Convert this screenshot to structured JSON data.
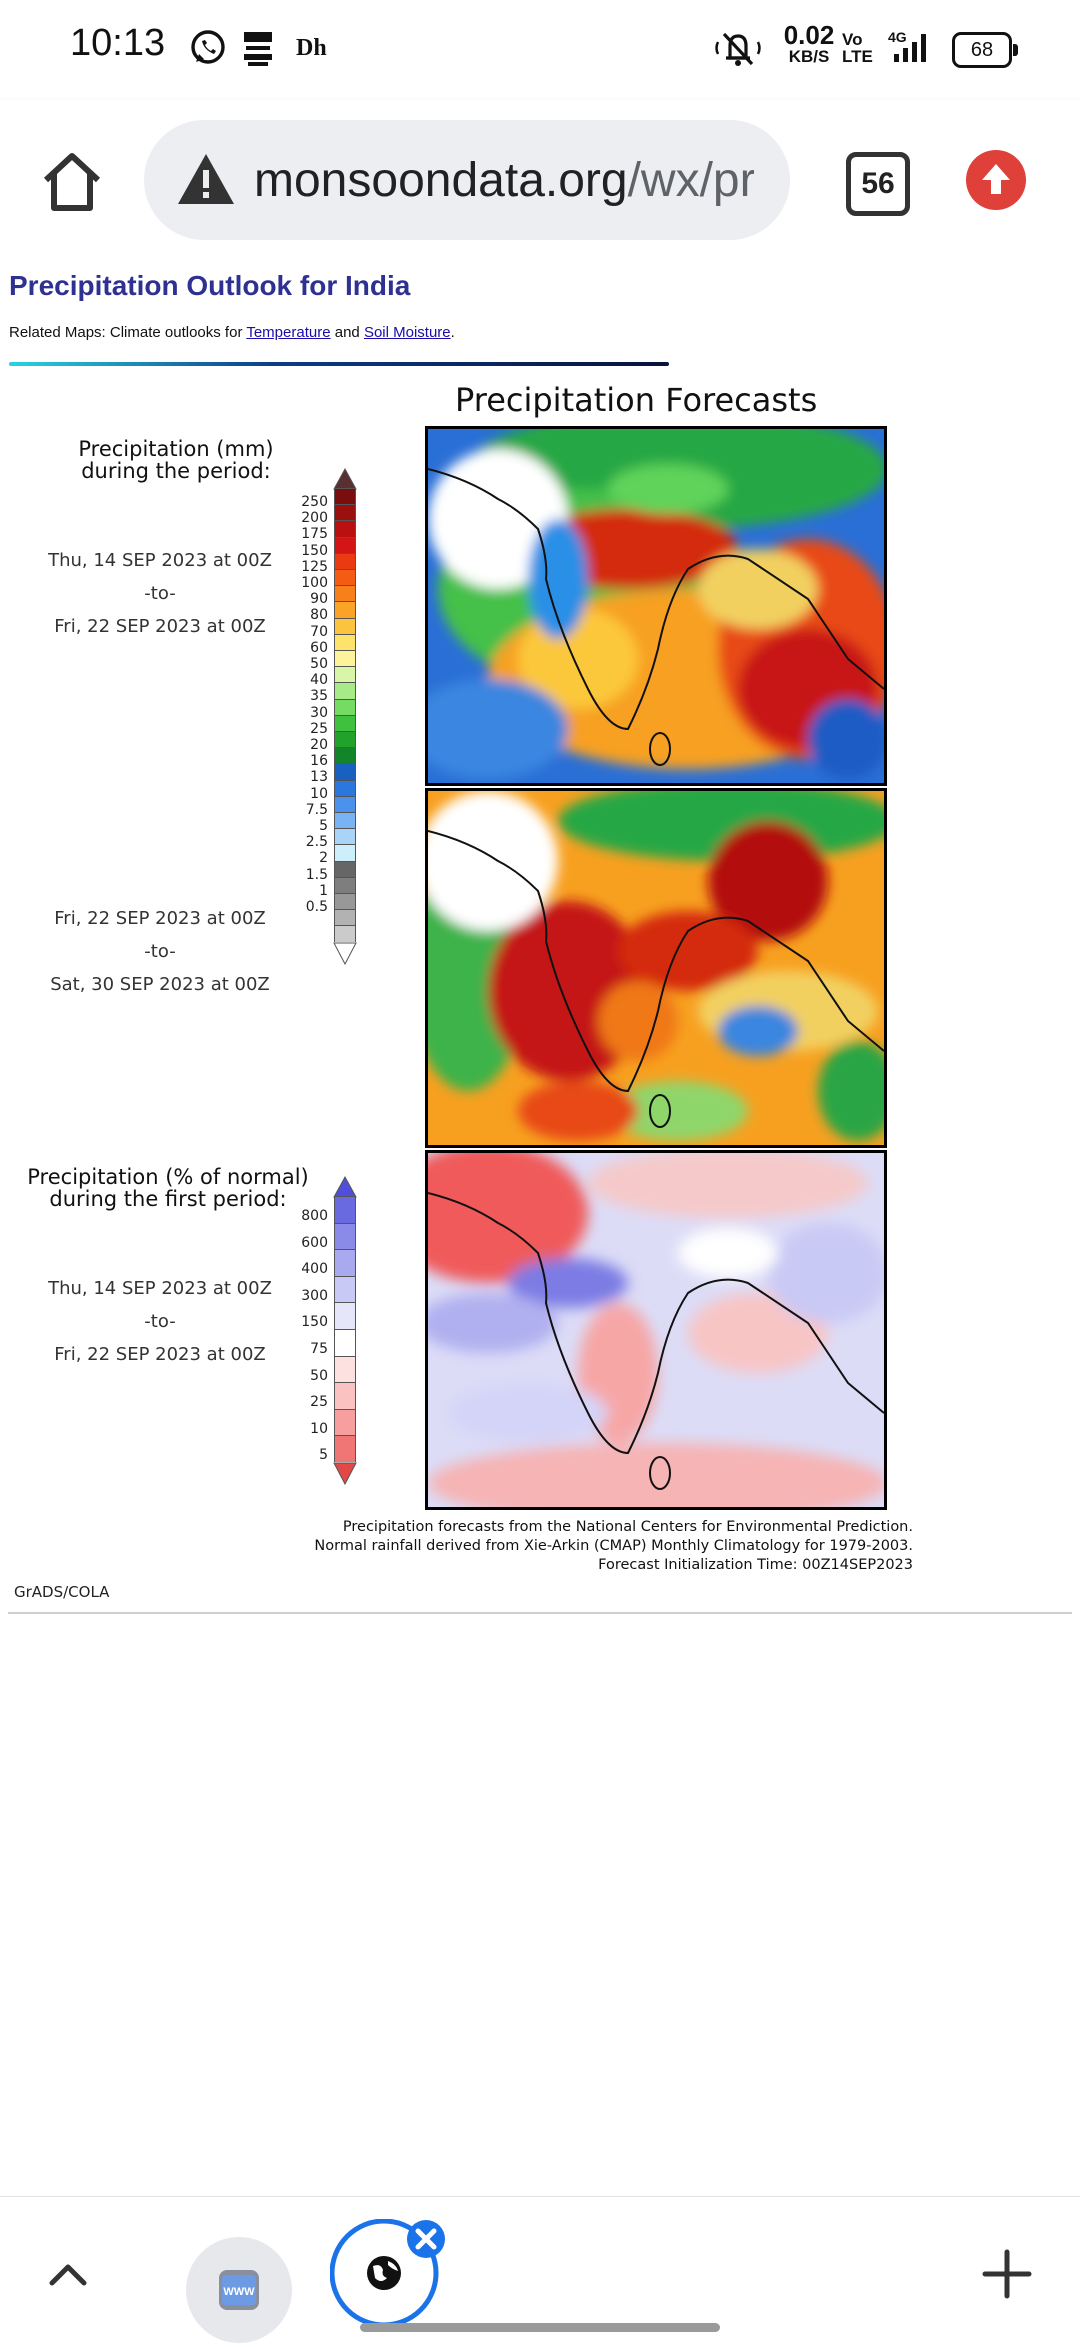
{
  "status": {
    "time": "10:13",
    "speed_value": "0.02",
    "speed_unit": "KB/S",
    "volte": "Vo LTE",
    "network": "4G",
    "battery": "68",
    "app_icon_text": "Dh"
  },
  "browser": {
    "url_host": "monsoondata.org",
    "url_path": "/wx/pr",
    "tab_count": "56"
  },
  "page": {
    "title": "Precipitation Outlook for India",
    "related_prefix": "Related Maps: Climate outlooks for ",
    "related_link1": "Temperature",
    "related_mid": " and ",
    "related_link2": "Soil Moisture",
    "related_suffix": ".",
    "figure_title": "Precipitation Forecasts",
    "legend1_title": [
      "Precipitation (mm)",
      "during the period:"
    ],
    "period1": [
      "Thu, 14 SEP 2023 at 00Z",
      "-to-",
      "Fri, 22 SEP 2023 at 00Z"
    ],
    "period2": [
      "Fri, 22 SEP 2023 at 00Z",
      "-to-",
      "Sat, 30 SEP 2023 at 00Z"
    ],
    "legend2_title": [
      "Precipitation (% of normal)",
      "during the first period:"
    ],
    "period3": [
      "Thu, 14 SEP 2023 at 00Z",
      "-to-",
      "Fri, 22 SEP 2023 at 00Z"
    ],
    "mm_ticks": [
      "250",
      "200",
      "175",
      "150",
      "125",
      "100",
      "90",
      "80",
      "70",
      "60",
      "50",
      "40",
      "35",
      "30",
      "25",
      "20",
      "16",
      "13",
      "10",
      "7.5",
      "5",
      "2.5",
      "2",
      "1.5",
      "1",
      "0.5"
    ],
    "mm_colors": [
      "#5a2f2f",
      "#7a0d0d",
      "#9b0f0f",
      "#bb1010",
      "#d41515",
      "#ea3a12",
      "#f35c12",
      "#f8801a",
      "#fba326",
      "#fcc43e",
      "#fde36b",
      "#fdf39a",
      "#d9f6a8",
      "#a7eb88",
      "#74dc62",
      "#3fc13f",
      "#21a22a",
      "#12852a",
      "#1a60c0",
      "#2a78df",
      "#4b92ec",
      "#79b3f3",
      "#a9d4f8",
      "#cdeefb",
      "#666666",
      "#7e7e7e",
      "#989898",
      "#b2b2b2",
      "#cbcbcb",
      "#ffffff"
    ],
    "pct_ticks": [
      "800",
      "600",
      "400",
      "300",
      "150",
      "75",
      "50",
      "25",
      "10",
      "5"
    ],
    "pct_colors": [
      "#4f4fdb",
      "#6a6ae0",
      "#8a8ae8",
      "#a9a9ef",
      "#c9c9f5",
      "#e6e6fb",
      "#ffffff",
      "#fde1e1",
      "#fbc2c2",
      "#f79f9f",
      "#f07575",
      "#e24848"
    ],
    "credits": [
      "Precipitation forecasts from the National Centers for Environmental Prediction.",
      "Normal rainfall derived from Xie-Arkin (CMAP) Monthly Climatology for 1979-2003.",
      "Forecast Initialization Time: 00Z14SEP2023"
    ],
    "grads_label": "GrADS/COLA"
  },
  "bottom": {
    "www_label": "WWW"
  }
}
